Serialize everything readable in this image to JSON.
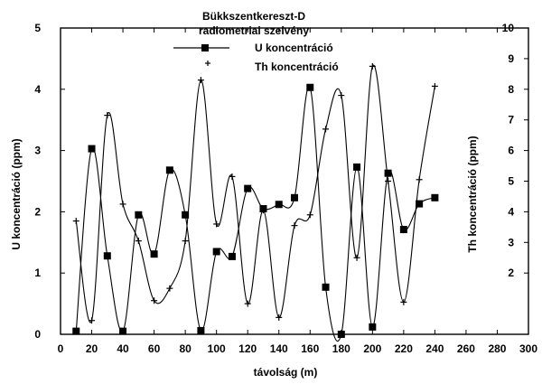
{
  "chart_data": {
    "type": "line",
    "title": [
      "Bükkszentkereszt-D",
      "radiometriai  szelvény"
    ],
    "xlabel": "távolság (m)",
    "ylabel": "U koncentráció  (ppm)",
    "y2label": "Th koncentráció  (ppm)",
    "xlim": [
      0,
      300
    ],
    "ylim": [
      0,
      5
    ],
    "y2lim": [
      0,
      10
    ],
    "x_ticks": [
      "0",
      "20",
      "40",
      "60",
      "80",
      "100",
      "120",
      "140",
      "160",
      "180",
      "200",
      "220",
      "240",
      "260",
      "280",
      "300"
    ],
    "y_ticks": [
      "0",
      "1",
      "2",
      "3",
      "4",
      "5"
    ],
    "y2_ticks": [
      "2",
      "3",
      "4",
      "5",
      "6",
      "7",
      "8",
      "9",
      "10"
    ],
    "legend_placement": "top-center",
    "series": [
      {
        "name": "U koncentráció",
        "axis": "left",
        "marker": "square",
        "x": [
          10,
          20,
          30,
          40,
          50,
          60,
          70,
          80,
          90,
          100,
          110,
          120,
          130,
          140,
          150,
          160,
          170,
          180,
          190,
          200,
          210,
          220,
          230,
          240
        ],
        "values": [
          0.05,
          3.03,
          1.28,
          0.05,
          1.95,
          1.31,
          2.68,
          1.95,
          0.06,
          1.35,
          1.27,
          2.38,
          2.05,
          2.12,
          2.23,
          4.03,
          0.77,
          0.0,
          2.73,
          0.12,
          2.63,
          1.71,
          2.13,
          2.23
        ]
      },
      {
        "name": "Th koncentráció",
        "axis": "right",
        "marker": "plus",
        "x": [
          10,
          20,
          30,
          40,
          50,
          60,
          70,
          80,
          90,
          100,
          110,
          120,
          130,
          140,
          150,
          160,
          170,
          180,
          190,
          200,
          210,
          220,
          230,
          240
        ],
        "values": [
          3.7,
          0.45,
          7.15,
          4.25,
          3.05,
          1.1,
          1.5,
          3.05,
          8.3,
          3.6,
          5.15,
          1.0,
          4.05,
          0.55,
          3.55,
          3.9,
          6.7,
          7.8,
          2.5,
          8.75,
          5.0,
          1.05,
          5.05,
          8.1
        ]
      }
    ]
  }
}
